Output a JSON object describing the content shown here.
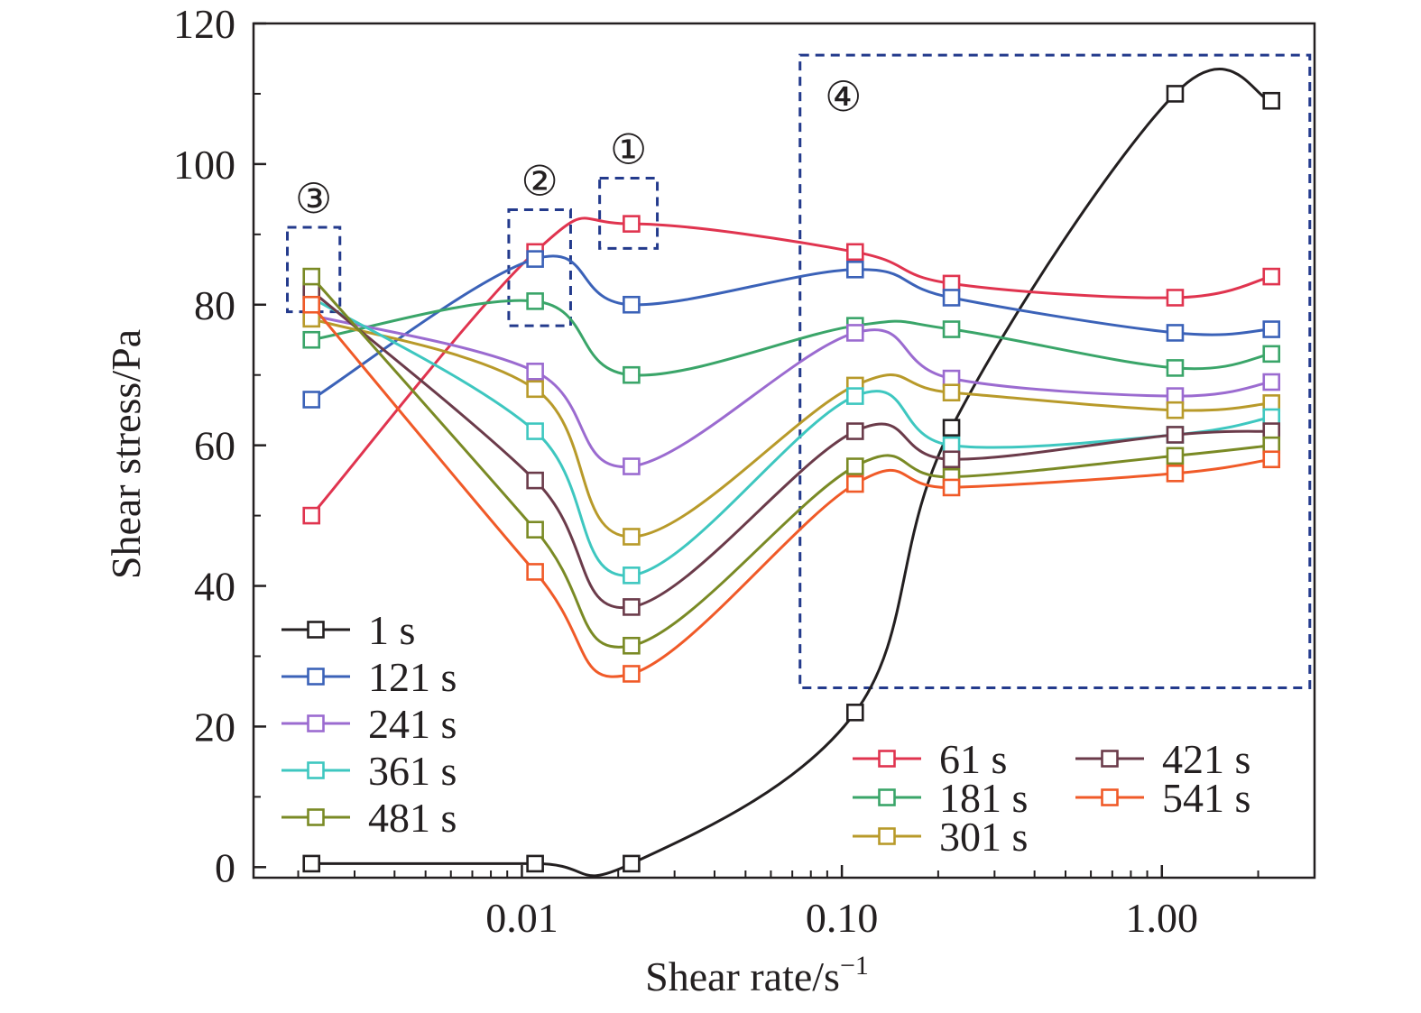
{
  "chart_data": {
    "type": "line",
    "xlabel": "Shear rate/s",
    "xlabel_sup": "−1",
    "ylabel": "Shear stress/Pa",
    "xscale": "log",
    "xlim": [
      0.00145,
      3.0
    ],
    "ylim": [
      -1.5,
      120
    ],
    "x_ticks": [
      {
        "value": 0.01,
        "label": "0.01"
      },
      {
        "value": 0.1,
        "label": "0.10"
      },
      {
        "value": 1.0,
        "label": "1.00"
      }
    ],
    "y_ticks": [
      {
        "value": 0,
        "label": "0"
      },
      {
        "value": 20,
        "label": "20"
      },
      {
        "value": 40,
        "label": "40"
      },
      {
        "value": 60,
        "label": "60"
      },
      {
        "value": 80,
        "label": "80"
      },
      {
        "value": 100,
        "label": "100"
      },
      {
        "value": 120,
        "label": "120"
      }
    ],
    "x": [
      0.0022,
      0.011,
      0.022,
      0.11,
      0.22,
      1.1,
      2.2
    ],
    "series": [
      {
        "name": "1 s",
        "color": "#231f20",
        "values": [
          0.5,
          0.5,
          0.5,
          22,
          62.5,
          110,
          109
        ]
      },
      {
        "name": "61 s",
        "color": "#e0344f",
        "values": [
          50,
          87.5,
          91.5,
          87.5,
          83,
          81,
          84
        ]
      },
      {
        "name": "121 s",
        "color": "#3b62b8",
        "values": [
          66.5,
          86.5,
          80,
          85,
          81,
          76,
          76.5
        ]
      },
      {
        "name": "181 s",
        "color": "#3aa569",
        "values": [
          75,
          80.5,
          70,
          77,
          76.5,
          71,
          73
        ]
      },
      {
        "name": "241 s",
        "color": "#9b6bd0",
        "values": [
          78.5,
          70.5,
          57,
          76,
          69.5,
          67,
          69
        ]
      },
      {
        "name": "301 s",
        "color": "#b89a2a",
        "values": [
          78,
          68,
          47,
          68.5,
          67.5,
          65,
          66
        ]
      },
      {
        "name": "361 s",
        "color": "#3ec7c0",
        "values": [
          81,
          62,
          41.5,
          67,
          60,
          61.5,
          64
        ]
      },
      {
        "name": "421 s",
        "color": "#6b3b4a",
        "values": [
          82,
          55,
          37,
          62,
          58,
          61.5,
          62
        ]
      },
      {
        "name": "481 s",
        "color": "#7a8a25",
        "values": [
          84,
          48,
          31.5,
          57,
          55.5,
          58.5,
          60
        ]
      },
      {
        "name": "541 s",
        "color": "#f05a28",
        "values": [
          80,
          42,
          27.5,
          54.5,
          54,
          56,
          58
        ]
      }
    ],
    "legend_left": {
      "position": "lower-left",
      "entries": [
        "1 s",
        "121 s",
        "241 s",
        "361 s",
        "481 s"
      ]
    },
    "legend_right": {
      "position": "lower-center",
      "columns": [
        [
          "61 s",
          "181 s",
          "301 s"
        ],
        [
          "421 s",
          "541 s"
        ]
      ]
    },
    "annotations": [
      {
        "label": "①",
        "color": "#233a8c",
        "box": {
          "x0": 0.0175,
          "x1": 0.0265,
          "y0": 88,
          "y1": 98
        }
      },
      {
        "label": "②",
        "color": "#233a8c",
        "box": {
          "x0": 0.0091,
          "x1": 0.0142,
          "y0": 77,
          "y1": 93.5
        }
      },
      {
        "label": "③",
        "color": "#233a8c",
        "box": {
          "x0": 0.00185,
          "x1": 0.0027,
          "y0": 79,
          "y1": 91
        }
      },
      {
        "label": "④",
        "color": "#233a8c",
        "box": {
          "x0": 0.074,
          "x1": 2.9,
          "y0": 25.5,
          "y1": 115.5
        }
      }
    ],
    "grid": false
  }
}
